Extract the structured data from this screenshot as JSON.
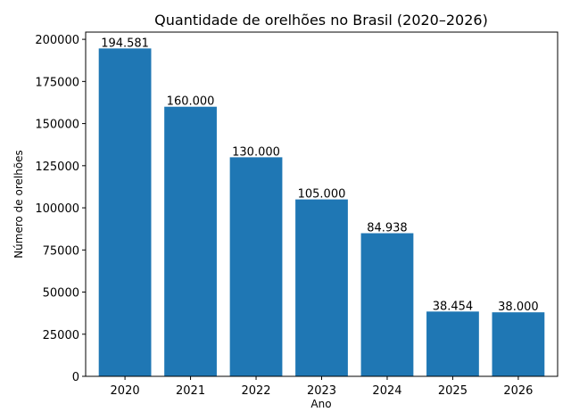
{
  "chart_data": {
    "type": "bar",
    "title": "Quantidade de orelhões no Brasil (2020–2026)",
    "xlabel": "Ano",
    "ylabel": "Número de orelhões",
    "categories": [
      "2020",
      "2021",
      "2022",
      "2023",
      "2024",
      "2025",
      "2026"
    ],
    "values": [
      194581,
      160000,
      130000,
      105000,
      84938,
      38454,
      38000
    ],
    "data_labels": [
      "194.581",
      "160.000",
      "130.000",
      "105.000",
      "84.938",
      "38.454",
      "38.000"
    ],
    "ylim": [
      0,
      204290
    ],
    "yticks": [
      0,
      25000,
      50000,
      75000,
      100000,
      125000,
      150000,
      175000,
      200000
    ],
    "ytick_labels": [
      "0",
      "25000",
      "50000",
      "75000",
      "100000",
      "125000",
      "150000",
      "175000",
      "200000"
    ],
    "grid": false,
    "bar_color": "#1f77b4"
  }
}
